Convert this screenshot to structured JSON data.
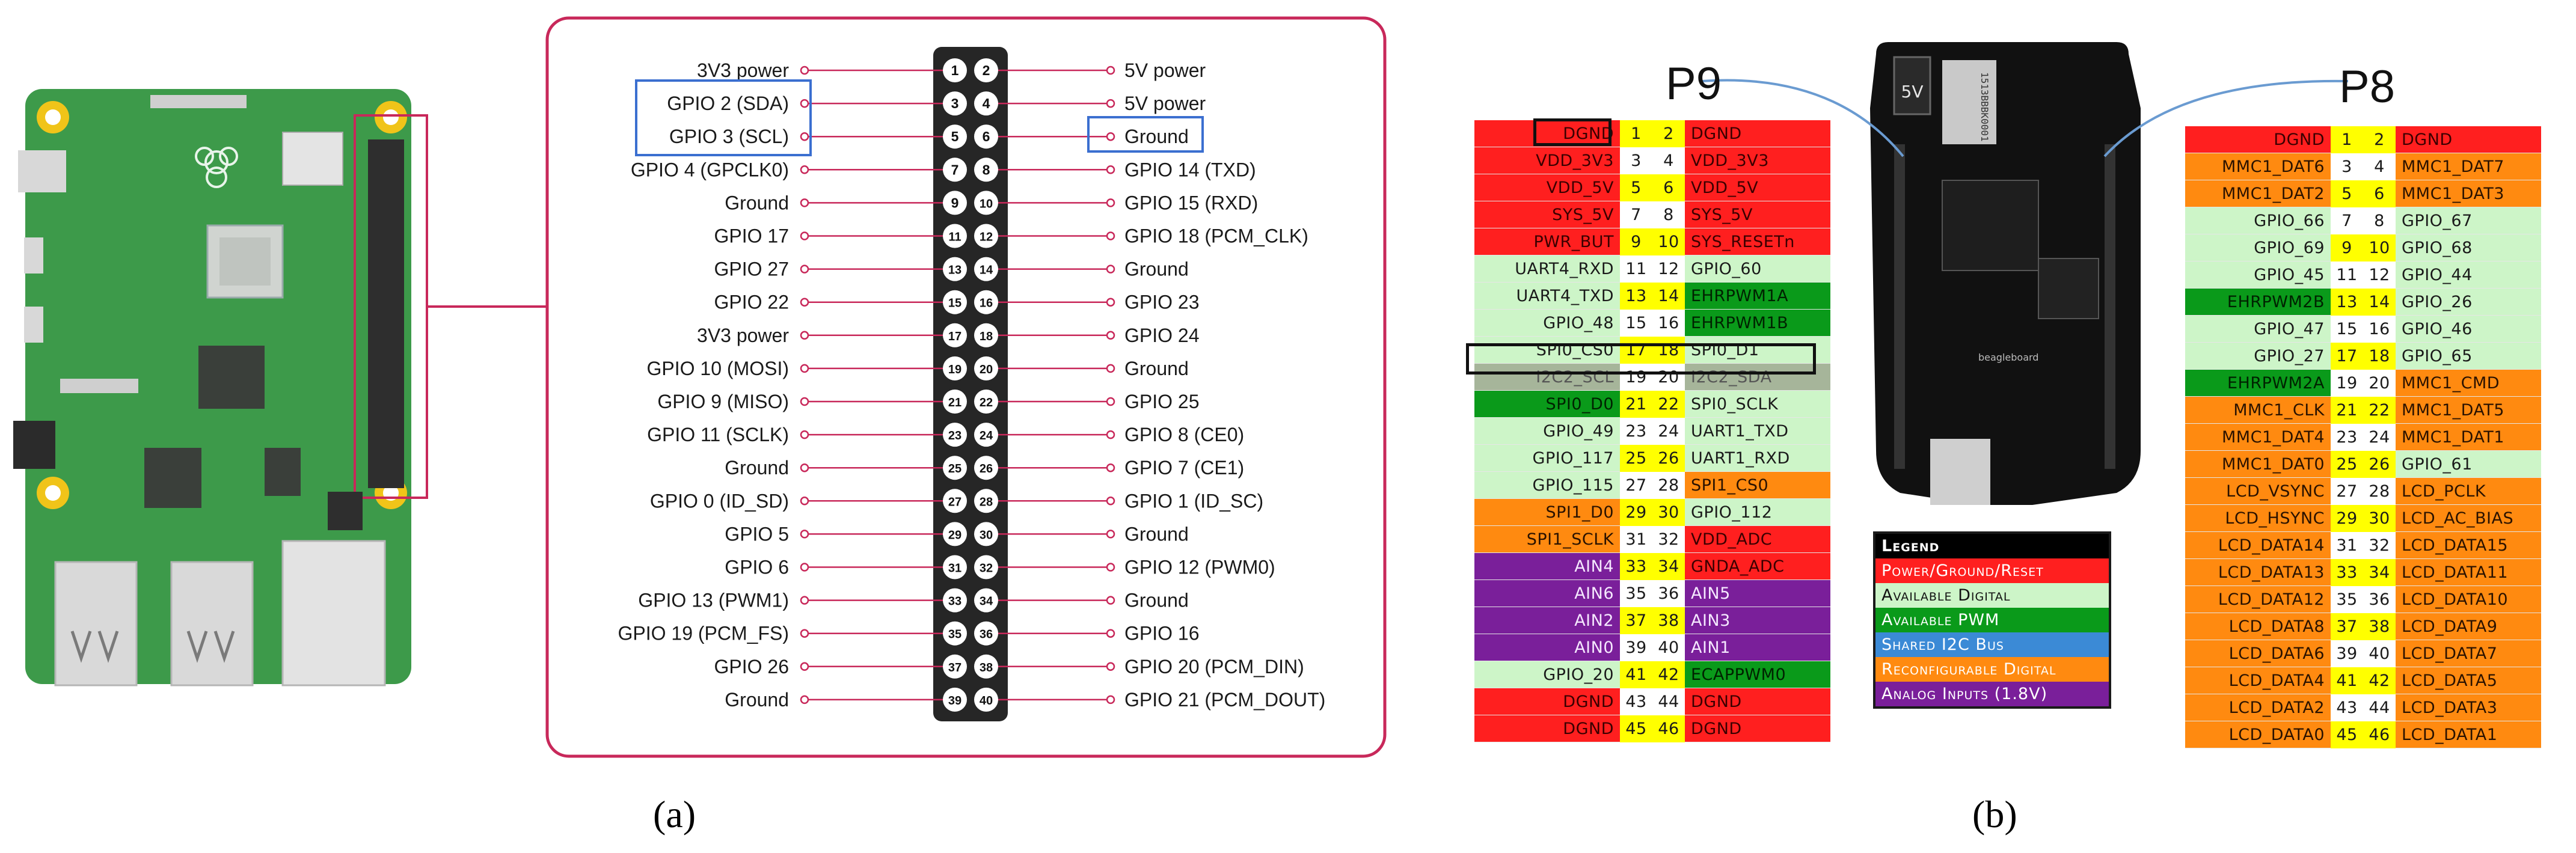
{
  "panel_a": {
    "caption": "(a)",
    "header_pins": [
      {
        "left": "3V3 power",
        "ln": "1",
        "rn": "2",
        "right": "5V power"
      },
      {
        "left": "GPIO 2 (SDA)",
        "ln": "3",
        "rn": "4",
        "right": "5V power"
      },
      {
        "left": "GPIO 3 (SCL)",
        "ln": "5",
        "rn": "6",
        "right": "Ground"
      },
      {
        "left": "GPIO 4 (GPCLK0)",
        "ln": "7",
        "rn": "8",
        "right": "GPIO 14 (TXD)"
      },
      {
        "left": "Ground",
        "ln": "9",
        "rn": "10",
        "right": "GPIO 15 (RXD)"
      },
      {
        "left": "GPIO 17",
        "ln": "11",
        "rn": "12",
        "right": "GPIO 18 (PCM_CLK)"
      },
      {
        "left": "GPIO 27",
        "ln": "13",
        "rn": "14",
        "right": "Ground"
      },
      {
        "left": "GPIO 22",
        "ln": "15",
        "rn": "16",
        "right": "GPIO 23"
      },
      {
        "left": "3V3 power",
        "ln": "17",
        "rn": "18",
        "right": "GPIO 24"
      },
      {
        "left": "GPIO 10 (MOSI)",
        "ln": "19",
        "rn": "20",
        "right": "Ground"
      },
      {
        "left": "GPIO 9 (MISO)",
        "ln": "21",
        "rn": "22",
        "right": "GPIO 25"
      },
      {
        "left": "GPIO 11 (SCLK)",
        "ln": "23",
        "rn": "24",
        "right": "GPIO 8 (CE0)"
      },
      {
        "left": "Ground",
        "ln": "25",
        "rn": "26",
        "right": "GPIO 7 (CE1)"
      },
      {
        "left": "GPIO 0 (ID_SD)",
        "ln": "27",
        "rn": "28",
        "right": "GPIO 1 (ID_SC)"
      },
      {
        "left": "GPIO 5",
        "ln": "29",
        "rn": "30",
        "right": "Ground"
      },
      {
        "left": "GPIO 6",
        "ln": "31",
        "rn": "32",
        "right": "GPIO 12 (PWM0)"
      },
      {
        "left": "GPIO 13 (PWM1)",
        "ln": "33",
        "rn": "34",
        "right": "Ground"
      },
      {
        "left": "GPIO 19 (PCM_FS)",
        "ln": "35",
        "rn": "36",
        "right": "GPIO 16"
      },
      {
        "left": "GPIO 26",
        "ln": "37",
        "rn": "38",
        "right": "GPIO 20 (PCM_DIN)"
      },
      {
        "left": "Ground",
        "ln": "39",
        "rn": "40",
        "right": "GPIO 21 (PCM_DOUT)"
      }
    ],
    "colors": {
      "frame": "#c8285a",
      "board": "#3d9a4a",
      "header": "#222222"
    }
  },
  "panel_b": {
    "caption": "(b)",
    "p9_label": "P9",
    "p8_label": "P8",
    "board_labels": {
      "power_jack": "5V",
      "chip": "1513BBBK0001",
      "brand": "beagleboard"
    },
    "p9": [
      {
        "l": "DGND",
        "ln": "1",
        "rn": "2",
        "r": "DGND",
        "lc": "red",
        "rc": "red",
        "hl": true
      },
      {
        "l": "VDD_3V3",
        "ln": "3",
        "rn": "4",
        "r": "VDD_3V3",
        "lc": "red",
        "rc": "red",
        "hl": false
      },
      {
        "l": "VDD_5V",
        "ln": "5",
        "rn": "6",
        "r": "VDD_5V",
        "lc": "red",
        "rc": "red",
        "hl": true
      },
      {
        "l": "SYS_5V",
        "ln": "7",
        "rn": "8",
        "r": "SYS_5V",
        "lc": "red",
        "rc": "red",
        "hl": false
      },
      {
        "l": "PWR_BUT",
        "ln": "9",
        "rn": "10",
        "r": "SYS_RESETn",
        "lc": "red",
        "rc": "red",
        "hl": true
      },
      {
        "l": "UART4_RXD",
        "ln": "11",
        "rn": "12",
        "r": "GPIO_60",
        "lc": "lg",
        "rc": "lg",
        "hl": false
      },
      {
        "l": "UART4_TXD",
        "ln": "13",
        "rn": "14",
        "r": "EHRPWM1A",
        "lc": "lg",
        "rc": "dg",
        "hl": true
      },
      {
        "l": "GPIO_48",
        "ln": "15",
        "rn": "16",
        "r": "EHRPWM1B",
        "lc": "lg",
        "rc": "dg",
        "hl": false
      },
      {
        "l": "SPI0_CS0",
        "ln": "17",
        "rn": "18",
        "r": "SPI0_D1",
        "lc": "lg",
        "rc": "lg",
        "hl": true
      },
      {
        "l": "I2C2_SCL",
        "ln": "19",
        "rn": "20",
        "r": "I2C2_SDA",
        "lc": "gy",
        "rc": "gy",
        "hl": false
      },
      {
        "l": "SPI0_D0",
        "ln": "21",
        "rn": "22",
        "r": "SPI0_SCLK",
        "lc": "dg",
        "rc": "lg",
        "hl": true
      },
      {
        "l": "GPIO_49",
        "ln": "23",
        "rn": "24",
        "r": "UART1_TXD",
        "lc": "lg",
        "rc": "lg",
        "hl": false
      },
      {
        "l": "GPIO_117",
        "ln": "25",
        "rn": "26",
        "r": "UART1_RXD",
        "lc": "lg",
        "rc": "lg",
        "hl": true
      },
      {
        "l": "GPIO_115",
        "ln": "27",
        "rn": "28",
        "r": "SPI1_CS0",
        "lc": "lg",
        "rc": "or",
        "hl": false
      },
      {
        "l": "SPI1_D0",
        "ln": "29",
        "rn": "30",
        "r": "GPIO_112",
        "lc": "or",
        "rc": "lg",
        "hl": true
      },
      {
        "l": "SPI1_SCLK",
        "ln": "31",
        "rn": "32",
        "r": "VDD_ADC",
        "lc": "or",
        "rc": "red",
        "hl": false
      },
      {
        "l": "AIN4",
        "ln": "33",
        "rn": "34",
        "r": "GNDA_ADC",
        "lc": "pu",
        "rc": "red",
        "hl": true
      },
      {
        "l": "AIN6",
        "ln": "35",
        "rn": "36",
        "r": "AIN5",
        "lc": "pu",
        "rc": "pu",
        "hl": false
      },
      {
        "l": "AIN2",
        "ln": "37",
        "rn": "38",
        "r": "AIN3",
        "lc": "pu",
        "rc": "pu",
        "hl": true
      },
      {
        "l": "AIN0",
        "ln": "39",
        "rn": "40",
        "r": "AIN1",
        "lc": "pu",
        "rc": "pu",
        "hl": false
      },
      {
        "l": "GPIO_20",
        "ln": "41",
        "rn": "42",
        "r": "ECAPPWM0",
        "lc": "lg",
        "rc": "dg",
        "hl": true
      },
      {
        "l": "DGND",
        "ln": "43",
        "rn": "44",
        "r": "DGND",
        "lc": "red",
        "rc": "red",
        "hl": false
      },
      {
        "l": "DGND",
        "ln": "45",
        "rn": "46",
        "r": "DGND",
        "lc": "red",
        "rc": "red",
        "hl": true
      }
    ],
    "p8": [
      {
        "l": "DGND",
        "ln": "1",
        "rn": "2",
        "r": "DGND",
        "lc": "red",
        "rc": "red",
        "hl": true
      },
      {
        "l": "MMC1_DAT6",
        "ln": "3",
        "rn": "4",
        "r": "MMC1_DAT7",
        "lc": "or",
        "rc": "or",
        "hl": false
      },
      {
        "l": "MMC1_DAT2",
        "ln": "5",
        "rn": "6",
        "r": "MMC1_DAT3",
        "lc": "or",
        "rc": "or",
        "hl": true
      },
      {
        "l": "GPIO_66",
        "ln": "7",
        "rn": "8",
        "r": "GPIO_67",
        "lc": "lg",
        "rc": "lg",
        "hl": false
      },
      {
        "l": "GPIO_69",
        "ln": "9",
        "rn": "10",
        "r": "GPIO_68",
        "lc": "lg",
        "rc": "lg",
        "hl": true
      },
      {
        "l": "GPIO_45",
        "ln": "11",
        "rn": "12",
        "r": "GPIO_44",
        "lc": "lg",
        "rc": "lg",
        "hl": false
      },
      {
        "l": "EHRPWM2B",
        "ln": "13",
        "rn": "14",
        "r": "GPIO_26",
        "lc": "dg",
        "rc": "lg",
        "hl": true
      },
      {
        "l": "GPIO_47",
        "ln": "15",
        "rn": "16",
        "r": "GPIO_46",
        "lc": "lg",
        "rc": "lg",
        "hl": false
      },
      {
        "l": "GPIO_27",
        "ln": "17",
        "rn": "18",
        "r": "GPIO_65",
        "lc": "lg",
        "rc": "lg",
        "hl": true
      },
      {
        "l": "EHRPWM2A",
        "ln": "19",
        "rn": "20",
        "r": "MMC1_CMD",
        "lc": "dg",
        "rc": "or",
        "hl": false
      },
      {
        "l": "MMC1_CLK",
        "ln": "21",
        "rn": "22",
        "r": "MMC1_DAT5",
        "lc": "or",
        "rc": "or",
        "hl": true
      },
      {
        "l": "MMC1_DAT4",
        "ln": "23",
        "rn": "24",
        "r": "MMC1_DAT1",
        "lc": "or",
        "rc": "or",
        "hl": false
      },
      {
        "l": "MMC1_DAT0",
        "ln": "25",
        "rn": "26",
        "r": "GPIO_61",
        "lc": "or",
        "rc": "lg",
        "hl": true
      },
      {
        "l": "LCD_VSYNC",
        "ln": "27",
        "rn": "28",
        "r": "LCD_PCLK",
        "lc": "or",
        "rc": "or",
        "hl": false
      },
      {
        "l": "LCD_HSYNC",
        "ln": "29",
        "rn": "30",
        "r": "LCD_AC_BIAS",
        "lc": "or",
        "rc": "or",
        "hl": true
      },
      {
        "l": "LCD_DATA14",
        "ln": "31",
        "rn": "32",
        "r": "LCD_DATA15",
        "lc": "or",
        "rc": "or",
        "hl": false
      },
      {
        "l": "LCD_DATA13",
        "ln": "33",
        "rn": "34",
        "r": "LCD_DATA11",
        "lc": "or",
        "rc": "or",
        "hl": true
      },
      {
        "l": "LCD_DATA12",
        "ln": "35",
        "rn": "36",
        "r": "LCD_DATA10",
        "lc": "or",
        "rc": "or",
        "hl": false
      },
      {
        "l": "LCD_DATA8",
        "ln": "37",
        "rn": "38",
        "r": "LCD_DATA9",
        "lc": "or",
        "rc": "or",
        "hl": true
      },
      {
        "l": "LCD_DATA6",
        "ln": "39",
        "rn": "40",
        "r": "LCD_DATA7",
        "lc": "or",
        "rc": "or",
        "hl": false
      },
      {
        "l": "LCD_DATA4",
        "ln": "41",
        "rn": "42",
        "r": "LCD_DATA5",
        "lc": "or",
        "rc": "or",
        "hl": true
      },
      {
        "l": "LCD_DATA2",
        "ln": "43",
        "rn": "44",
        "r": "LCD_DATA3",
        "lc": "or",
        "rc": "or",
        "hl": false
      },
      {
        "l": "LCD_DATA0",
        "ln": "45",
        "rn": "46",
        "r": "LCD_DATA1",
        "lc": "or",
        "rc": "or",
        "hl": true
      }
    ],
    "legend": {
      "title": "Legend",
      "items": [
        {
          "label": "Power/Ground/Reset",
          "color": "#ff1f1f"
        },
        {
          "label": "Available Digital",
          "color": "#cdf5c8"
        },
        {
          "label": "Available PWM",
          "color": "#0a9a1a"
        },
        {
          "label": "Shared I2C Bus",
          "color": "#3b8ad6"
        },
        {
          "label": "Reconfigurable Digital",
          "color": "#ff8a10"
        },
        {
          "label": "Analog Inputs (1.8V)",
          "color": "#7a1f9a"
        }
      ]
    }
  }
}
